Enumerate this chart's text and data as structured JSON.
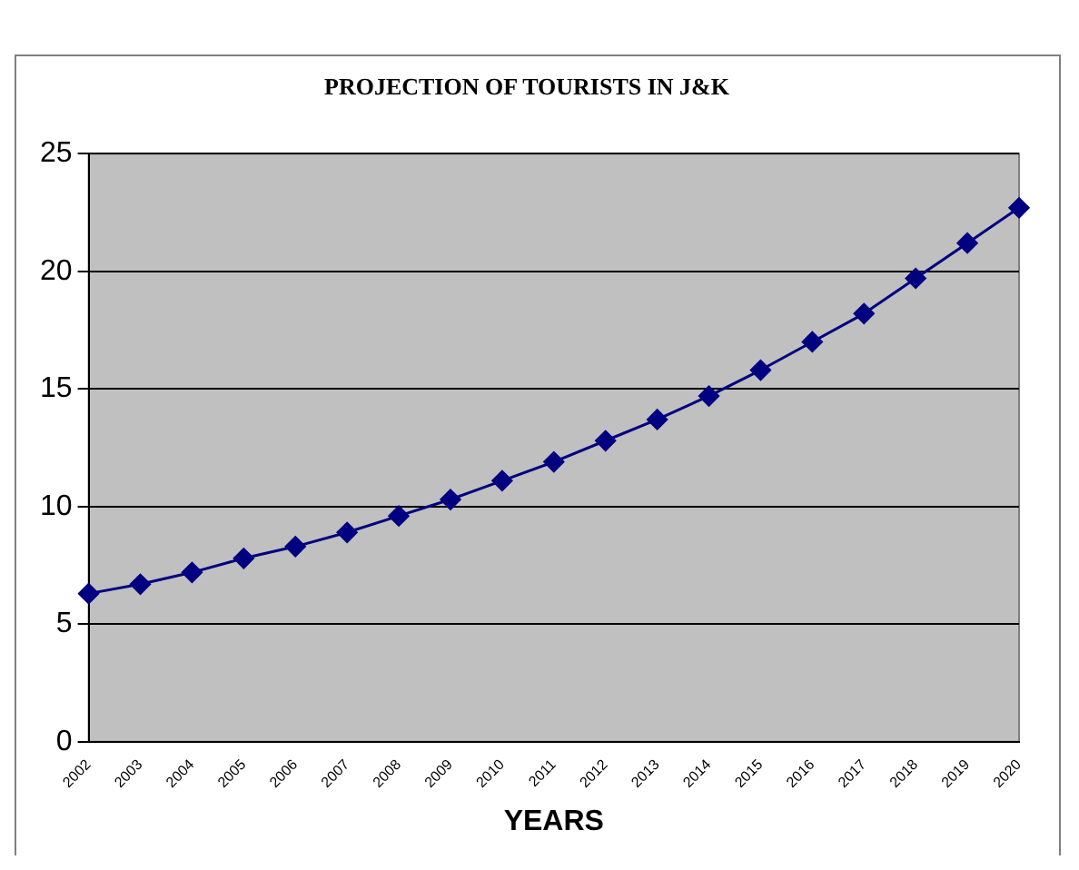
{
  "chart_data": {
    "type": "line",
    "title": "PROJECTION OF TOURISTS IN J&K",
    "xlabel": "YEARS",
    "categories": [
      "2002",
      "2003",
      "2004",
      "2005",
      "2006",
      "2007",
      "2008",
      "2009",
      "2010",
      "2011",
      "2012",
      "2013",
      "2014",
      "2015",
      "2016",
      "2017",
      "2018",
      "2019",
      "2020"
    ],
    "series": [
      {
        "color": "#000080",
        "values": [
          6.3,
          6.7,
          7.2,
          7.8,
          8.3,
          8.9,
          9.6,
          10.3,
          11.1,
          11.9,
          12.8,
          13.7,
          14.7,
          15.8,
          17.0,
          18.2,
          19.7,
          21.2,
          22.7
        ]
      }
    ],
    "ylim": [
      0,
      25
    ],
    "yticks": [
      0,
      5,
      10,
      15,
      20,
      25
    ],
    "grid": "y",
    "legend": false,
    "marker": "diamond",
    "line_style": "solid"
  }
}
